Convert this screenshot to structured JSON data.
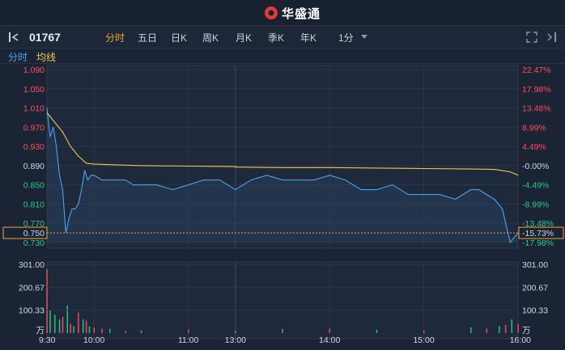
{
  "brand": {
    "name": "华盛通"
  },
  "toolbar": {
    "code": "01767",
    "tabs": [
      "分时",
      "五日",
      "日K",
      "周K",
      "月K",
      "季K",
      "年K",
      "1分"
    ],
    "active_tab": "分时"
  },
  "legend": {
    "time_label": "分时",
    "avg_label": "均线"
  },
  "colors": {
    "price": "#4aa3e8",
    "avg": "#f2c94c",
    "up": "#ff4d5b",
    "down": "#26c987",
    "neutral": "#d0d8e4",
    "current": "#f0a33a"
  },
  "chart_data": {
    "type": "line",
    "series": [
      {
        "name": "分时",
        "x": [
          "09:30",
          "09:31",
          "09:32",
          "09:34",
          "09:36",
          "09:38",
          "09:40",
          "09:42",
          "09:44",
          "09:46",
          "09:48",
          "09:50",
          "09:52",
          "09:54",
          "09:56",
          "09:58",
          "10:00",
          "10:05",
          "10:10",
          "10:15",
          "10:20",
          "10:25",
          "10:30",
          "10:40",
          "10:50",
          "11:00",
          "11:10",
          "11:20",
          "11:30",
          "13:10",
          "13:20",
          "13:30",
          "13:40",
          "13:50",
          "14:00",
          "14:10",
          "14:20",
          "14:30",
          "14:40",
          "14:50",
          "15:00",
          "15:10",
          "15:20",
          "15:30",
          "15:35",
          "15:40",
          "15:45",
          "15:50",
          "15:55",
          "16:00"
        ],
        "values": [
          1.01,
          0.98,
          0.95,
          0.97,
          0.93,
          0.87,
          0.84,
          0.75,
          0.78,
          0.8,
          0.8,
          0.81,
          0.84,
          0.88,
          0.86,
          0.87,
          0.87,
          0.86,
          0.86,
          0.86,
          0.86,
          0.85,
          0.85,
          0.85,
          0.84,
          0.85,
          0.86,
          0.86,
          0.84,
          0.86,
          0.87,
          0.86,
          0.86,
          0.86,
          0.87,
          0.86,
          0.84,
          0.84,
          0.85,
          0.83,
          0.83,
          0.83,
          0.82,
          0.84,
          0.84,
          0.83,
          0.82,
          0.8,
          0.73,
          0.75
        ]
      },
      {
        "name": "均线",
        "x": [
          "09:30",
          "09:35",
          "09:40",
          "09:45",
          "09:50",
          "09:55",
          "10:00",
          "10:30",
          "11:00",
          "11:30",
          "13:00",
          "13:30",
          "14:00",
          "14:30",
          "15:00",
          "15:30",
          "15:45",
          "15:55",
          "16:00"
        ],
        "values": [
          1.0,
          0.98,
          0.96,
          0.93,
          0.91,
          0.895,
          0.893,
          0.89,
          0.889,
          0.888,
          0.887,
          0.886,
          0.886,
          0.885,
          0.884,
          0.883,
          0.882,
          0.877,
          0.87
        ]
      }
    ],
    "volume": {
      "x": [
        "09:30",
        "09:32",
        "09:35",
        "09:38",
        "09:40",
        "09:43",
        "09:45",
        "09:47",
        "09:50",
        "09:53",
        "09:55",
        "09:57",
        "10:00",
        "10:05",
        "10:10",
        "10:20",
        "10:30",
        "11:00",
        "11:30",
        "13:00",
        "13:30",
        "14:00",
        "14:30",
        "15:00",
        "15:30",
        "15:40",
        "15:48",
        "15:52",
        "15:56",
        "16:00"
      ],
      "values": [
        280,
        100,
        80,
        60,
        70,
        120,
        40,
        30,
        90,
        60,
        55,
        30,
        25,
        20,
        18,
        10,
        12,
        15,
        8,
        10,
        18,
        20,
        15,
        12,
        25,
        20,
        30,
        35,
        60,
        40
      ],
      "direction": [
        "up",
        "down",
        "down",
        "down",
        "up",
        "down",
        "up",
        "down",
        "up",
        "down",
        "up",
        "down",
        "up",
        "up",
        "down",
        "up",
        "down",
        "up",
        "down",
        "up",
        "down",
        "up",
        "down",
        "up",
        "down",
        "up",
        "down",
        "up",
        "down",
        "up"
      ]
    },
    "prev_close": 0.89,
    "current_price": 0.75,
    "current_pct": "-15.73%",
    "ylim": [
      0.73,
      1.09
    ],
    "price_ticks": [
      "1.090",
      "1.050",
      "1.010",
      "0.970",
      "0.930",
      "0.890",
      "0.850",
      "0.810",
      "0.770",
      "0.750",
      "0.730"
    ],
    "pct_ticks": [
      "22.47%",
      "17.98%",
      "13.48%",
      "8.99%",
      "4.49%",
      "-0.00%",
      "-4.49%",
      "-8.99%",
      "-13.48%",
      "-15.73%",
      "-17.98%"
    ],
    "volume_ticks": [
      "301.00",
      "200.67",
      "100.33",
      "万"
    ],
    "volume_ylim": [
      0,
      301
    ],
    "x_ticks": [
      "9:30",
      "10:00",
      "11:00",
      "13:00",
      "14:00",
      "15:00",
      "16:00"
    ]
  }
}
